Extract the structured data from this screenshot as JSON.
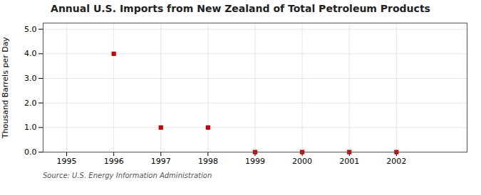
{
  "chart_data": {
    "type": "scatter",
    "title": "Annual U.S. Imports from New Zealand of Total Petroleum Products",
    "ylabel": "Thousand Barrels per Day",
    "source": "Source: U.S. Energy Information Administration",
    "x": [
      1996,
      1997,
      1998,
      1999,
      2000,
      2001,
      2002
    ],
    "values": [
      4.0,
      1.0,
      1.0,
      0.0,
      0.0,
      0.0,
      0.0
    ],
    "color": "#cc0000",
    "marker": "square",
    "xlim": [
      1994.5,
      2003.5
    ],
    "xticks": [
      1995,
      1996,
      1997,
      1998,
      1999,
      2000,
      2001,
      2002
    ],
    "ylim": [
      0.0,
      5.25
    ],
    "yticks": [
      {
        "value": 0.0,
        "label": "0.0"
      },
      {
        "value": 1.0,
        "label": "1.0"
      },
      {
        "value": 2.0,
        "label": "2.0"
      },
      {
        "value": 3.0,
        "label": "3.0"
      },
      {
        "value": 4.0,
        "label": "4.0"
      },
      {
        "value": 5.0,
        "label": "5.0"
      }
    ],
    "grid": true
  }
}
